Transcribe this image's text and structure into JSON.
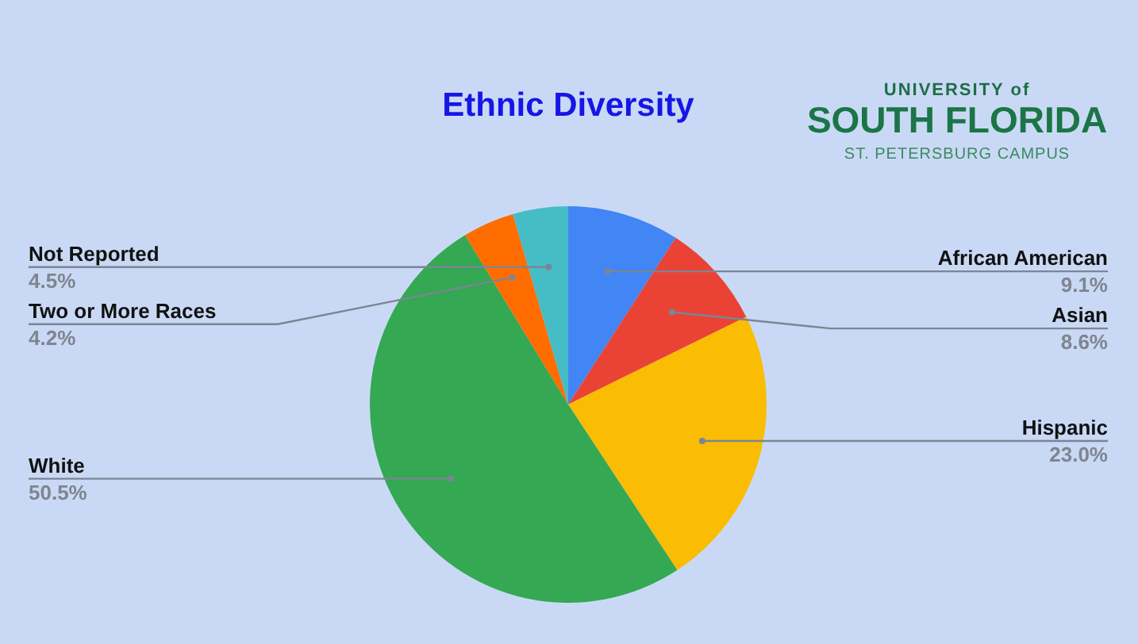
{
  "chart_data": {
    "type": "pie",
    "title": "Ethnic Diversity",
    "categories": [
      "African American",
      "Asian",
      "Hispanic",
      "White",
      "Two or More Races",
      "Not Reported"
    ],
    "values": [
      9.1,
      8.6,
      23.0,
      50.5,
      4.2,
      4.5
    ],
    "colors": [
      "#4285f4",
      "#ea4335",
      "#fbbc04",
      "#34a853",
      "#ff6d01",
      "#46bdc6"
    ],
    "value_labels": [
      "9.1%",
      "8.6%",
      "23.0%",
      "50.5%",
      "4.2%",
      "4.5%"
    ],
    "annotations": [
      "UNIVERSITY of",
      "SOUTH FLORIDA",
      "ST. PETERSBURG CAMPUS"
    ]
  }
}
